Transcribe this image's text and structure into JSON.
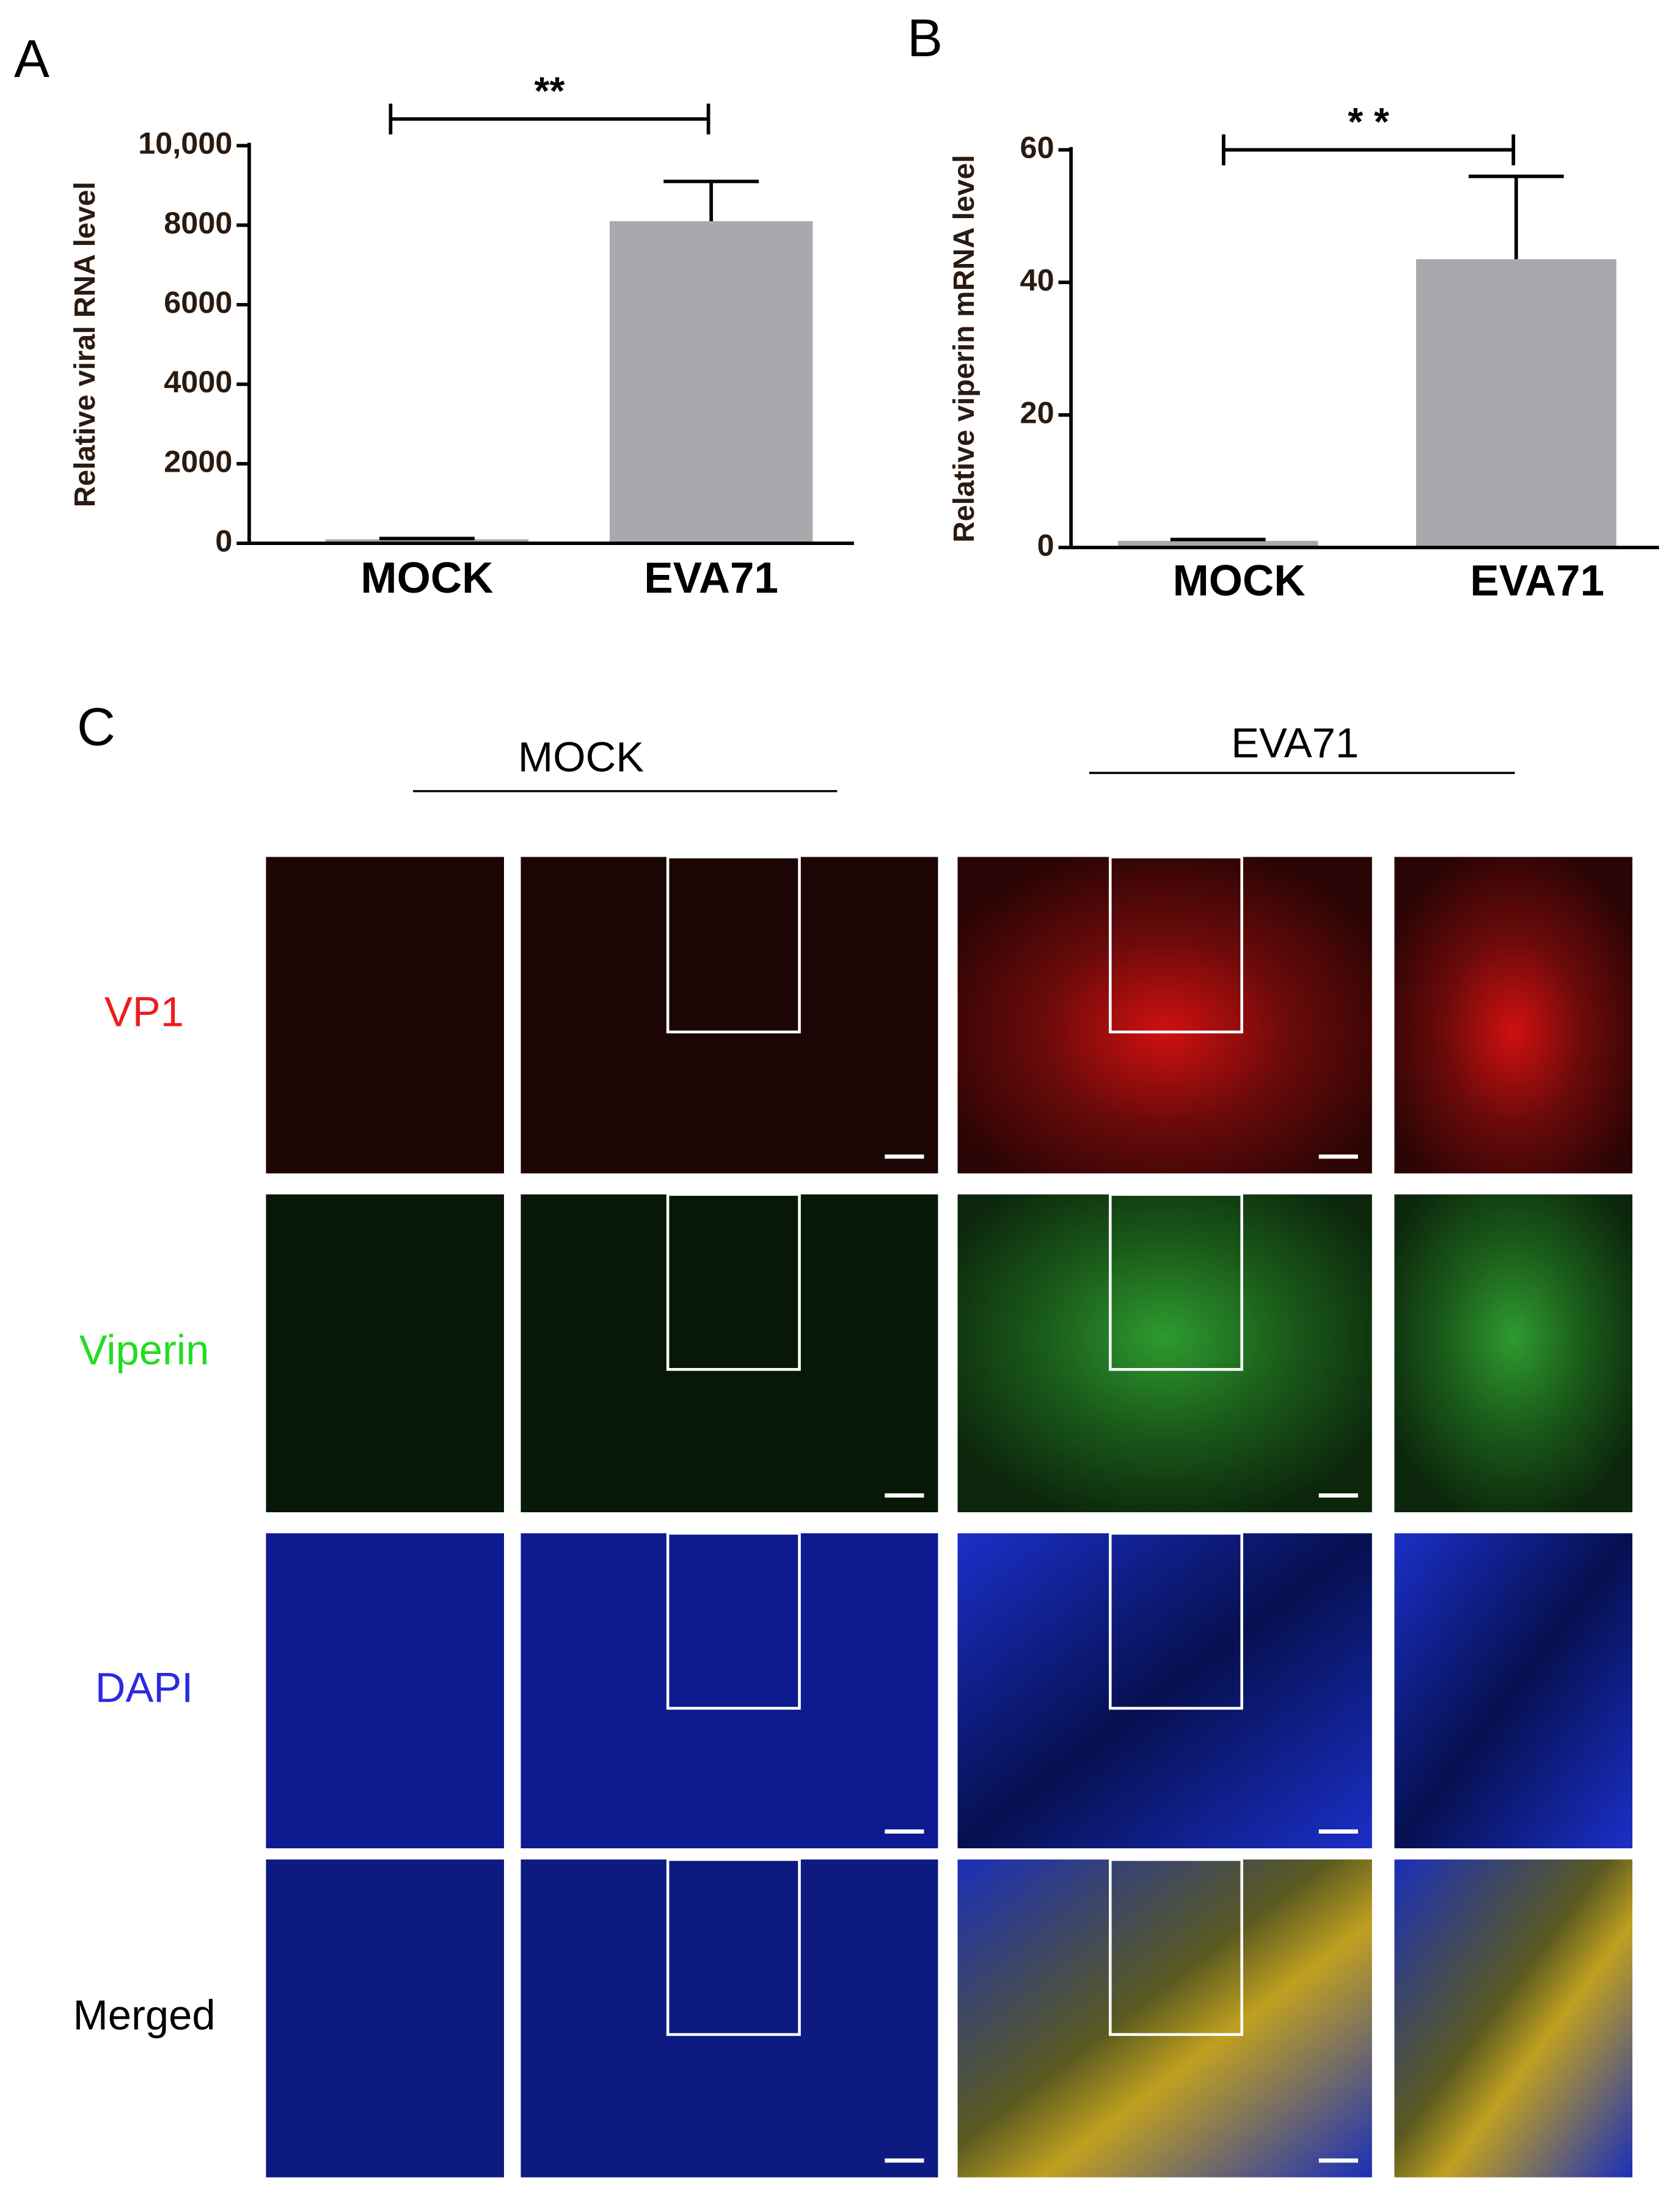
{
  "chart_data": [
    {
      "type": "bar",
      "panel_label": "A",
      "ylabel": "Relative viral  RNA level",
      "categories": [
        "MOCK",
        "EVA71"
      ],
      "values": [
        100,
        8100
      ],
      "errors": [
        20,
        1000
      ],
      "color": "#a7a9ac",
      "ylim": [
        0,
        10000
      ],
      "yticks": [
        0,
        2000,
        4000,
        6000,
        8000,
        {
          "value": 10000,
          "label": "10,000"
        }
      ],
      "significance": "**"
    },
    {
      "type": "bar",
      "panel_label": "B",
      "ylabel": "Relative viperin mRNA level",
      "categories": [
        "MOCK",
        "EVA71"
      ],
      "values": [
        1,
        43.5
      ],
      "errors": [
        0.2,
        12.5
      ],
      "color": "#a7a9ac",
      "ylim": [
        0,
        60
      ],
      "yticks": [
        0,
        20,
        40,
        60
      ],
      "significance": "* *"
    }
  ],
  "panel_c": {
    "label": "C",
    "columns": [
      "MOCK",
      "EVA71"
    ],
    "rows": [
      "VP1",
      "Viperin",
      "DAPI",
      "Merged"
    ]
  }
}
